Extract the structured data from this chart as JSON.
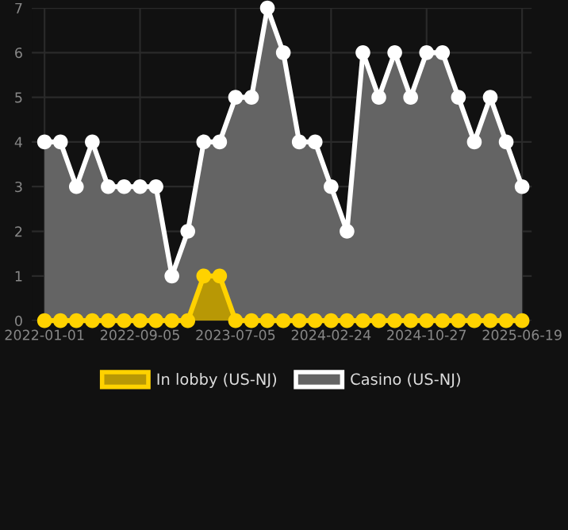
{
  "chart_data": {
    "type": "area",
    "categories": [
      "2022-01-01",
      null,
      null,
      null,
      null,
      null,
      "2022-09-05",
      null,
      null,
      null,
      null,
      null,
      "2023-07-05",
      null,
      null,
      null,
      null,
      null,
      "2024-02-24",
      null,
      null,
      null,
      null,
      null,
      "2024-10-27",
      null,
      null,
      null,
      null,
      null,
      "2025-06-19"
    ],
    "series": [
      {
        "name": "In lobby (US-NJ)",
        "color": "#ffd200",
        "values": [
          0,
          0,
          0,
          0,
          0,
          0,
          0,
          0,
          0,
          0,
          1,
          1,
          0,
          0,
          0,
          0,
          0,
          0,
          0,
          0,
          0,
          0,
          0,
          0,
          0,
          0,
          0,
          0,
          0,
          0,
          0
        ]
      },
      {
        "name": "Casino (US-NJ)",
        "color": "#ffffff",
        "values": [
          4,
          4,
          3,
          4,
          3,
          3,
          3,
          3,
          1,
          2,
          4,
          4,
          5,
          5,
          7,
          6,
          4,
          4,
          3,
          2,
          6,
          5,
          6,
          5,
          6,
          6,
          5,
          4,
          5,
          4,
          3
        ]
      }
    ],
    "ylim": [
      0,
      7
    ],
    "yticks": [
      0,
      1,
      2,
      3,
      4,
      5,
      6,
      7
    ],
    "grid": true,
    "legend": "bottom",
    "marker": "circle",
    "line_style": "solid"
  }
}
